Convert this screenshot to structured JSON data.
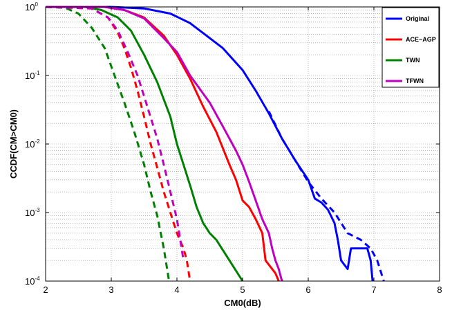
{
  "chart_data": {
    "type": "line",
    "xlabel": "CM0(dB)",
    "ylabel": "CCDF(CM>CM0)",
    "xlim": [
      2,
      8
    ],
    "ylim": [
      0.0001,
      1
    ],
    "yscale": "log",
    "grid": true,
    "legend_position": "top-right",
    "x_ticks": [
      "2",
      "3",
      "4",
      "5",
      "6",
      "7",
      "8"
    ],
    "y_ticks": [
      {
        "base": "10",
        "exp": "0",
        "value": 1
      },
      {
        "base": "10",
        "exp": "-1",
        "value": 0.1
      },
      {
        "base": "10",
        "exp": "-2",
        "value": 0.01
      },
      {
        "base": "10",
        "exp": "-3",
        "value": 0.001
      },
      {
        "base": "10",
        "exp": "-4",
        "value": 0.0001
      }
    ],
    "legend": [
      {
        "label": "Original",
        "color": "#0000ff"
      },
      {
        "label": "ACE−AGP",
        "color": "#ff0000"
      },
      {
        "label": "TWN",
        "color": "#008000"
      },
      {
        "label": "TFWN",
        "color": "#bf00bf"
      }
    ],
    "series": [
      {
        "name": "Original",
        "color": "#0000ff",
        "style": "solid",
        "points": [
          [
            2.0,
            1
          ],
          [
            3.0,
            1
          ],
          [
            3.5,
            0.95
          ],
          [
            3.9,
            0.8
          ],
          [
            4.2,
            0.58
          ],
          [
            4.5,
            0.35
          ],
          [
            4.7,
            0.25
          ],
          [
            5.0,
            0.12
          ],
          [
            5.2,
            0.06
          ],
          [
            5.4,
            0.028
          ],
          [
            5.6,
            0.012
          ],
          [
            5.8,
            0.0058
          ],
          [
            6.0,
            0.003
          ],
          [
            6.1,
            0.0016
          ],
          [
            6.2,
            0.0014
          ],
          [
            6.3,
            0.0011
          ],
          [
            6.4,
            0.0007
          ],
          [
            6.45,
            0.0004
          ],
          [
            6.5,
            0.0002
          ],
          [
            6.6,
            0.00015
          ],
          [
            6.65,
            0.0003
          ],
          [
            6.9,
            0.0003
          ],
          [
            6.95,
            0.0002
          ],
          [
            6.98,
            0.0001
          ]
        ]
      },
      {
        "name": "Original (dashed)",
        "color": "#0000ff",
        "style": "dashed",
        "points": [
          [
            5.4,
            0.03
          ],
          [
            5.6,
            0.012
          ],
          [
            5.8,
            0.0058
          ],
          [
            6.0,
            0.0028
          ],
          [
            6.2,
            0.0016
          ],
          [
            6.4,
            0.001
          ],
          [
            6.6,
            0.0005
          ],
          [
            6.8,
            0.0004
          ],
          [
            6.95,
            0.0003
          ],
          [
            7.05,
            0.0002
          ],
          [
            7.15,
            0.0001
          ]
        ]
      },
      {
        "name": "ACE−AGP",
        "color": "#ff0000",
        "style": "solid",
        "points": [
          [
            2.0,
            1
          ],
          [
            2.9,
            1
          ],
          [
            3.2,
            0.9
          ],
          [
            3.5,
            0.7
          ],
          [
            3.8,
            0.38
          ],
          [
            4.0,
            0.2
          ],
          [
            4.2,
            0.09
          ],
          [
            4.4,
            0.035
          ],
          [
            4.6,
            0.015
          ],
          [
            4.8,
            0.005
          ],
          [
            4.9,
            0.003
          ],
          [
            5.0,
            0.0015
          ],
          [
            5.1,
            0.0012
          ],
          [
            5.2,
            0.0008
          ],
          [
            5.3,
            0.0005
          ],
          [
            5.35,
            0.0002
          ],
          [
            5.45,
            0.00015
          ],
          [
            5.5,
            0.00013
          ],
          [
            5.55,
            0.0001
          ]
        ]
      },
      {
        "name": "ACE−AGP (dashed)",
        "color": "#ff0000",
        "style": "dashed",
        "points": [
          [
            2.0,
            1
          ],
          [
            2.7,
            0.95
          ],
          [
            2.95,
            0.7
          ],
          [
            3.1,
            0.42
          ],
          [
            3.2,
            0.25
          ],
          [
            3.3,
            0.13
          ],
          [
            3.4,
            0.06
          ],
          [
            3.5,
            0.025
          ],
          [
            3.6,
            0.01
          ],
          [
            3.7,
            0.0045
          ],
          [
            3.8,
            0.002
          ],
          [
            3.9,
            0.001
          ],
          [
            4.0,
            0.0005
          ],
          [
            4.1,
            0.0003
          ],
          [
            4.15,
            0.0002
          ],
          [
            4.2,
            0.0001
          ]
        ]
      },
      {
        "name": "TWN",
        "color": "#008000",
        "style": "solid",
        "points": [
          [
            2.0,
            1
          ],
          [
            2.6,
            1
          ],
          [
            2.85,
            0.9
          ],
          [
            3.1,
            0.7
          ],
          [
            3.3,
            0.45
          ],
          [
            3.5,
            0.2
          ],
          [
            3.7,
            0.08
          ],
          [
            3.9,
            0.025
          ],
          [
            4.0,
            0.01
          ],
          [
            4.1,
            0.005
          ],
          [
            4.2,
            0.0025
          ],
          [
            4.3,
            0.0012
          ],
          [
            4.4,
            0.0007
          ],
          [
            4.5,
            0.0005
          ],
          [
            4.6,
            0.0004
          ],
          [
            4.8,
            0.0002
          ],
          [
            5.0,
            0.0001
          ]
        ]
      },
      {
        "name": "TWN (dashed)",
        "color": "#008000",
        "style": "dashed",
        "points": [
          [
            2.0,
            1
          ],
          [
            2.3,
            0.97
          ],
          [
            2.5,
            0.8
          ],
          [
            2.7,
            0.5
          ],
          [
            2.9,
            0.25
          ],
          [
            3.05,
            0.1
          ],
          [
            3.2,
            0.04
          ],
          [
            3.35,
            0.015
          ],
          [
            3.5,
            0.005
          ],
          [
            3.6,
            0.002
          ],
          [
            3.7,
            0.0009
          ],
          [
            3.8,
            0.0003
          ],
          [
            3.88,
            0.0001
          ]
        ]
      },
      {
        "name": "TFWN",
        "color": "#bf00bf",
        "style": "solid",
        "points": [
          [
            2.0,
            1
          ],
          [
            2.9,
            1
          ],
          [
            3.2,
            0.9
          ],
          [
            3.5,
            0.68
          ],
          [
            3.8,
            0.35
          ],
          [
            4.0,
            0.22
          ],
          [
            4.2,
            0.1
          ],
          [
            4.5,
            0.04
          ],
          [
            4.7,
            0.018
          ],
          [
            4.9,
            0.008
          ],
          [
            5.0,
            0.005
          ],
          [
            5.1,
            0.0028
          ],
          [
            5.2,
            0.0015
          ],
          [
            5.3,
            0.0008
          ],
          [
            5.4,
            0.0005
          ],
          [
            5.45,
            0.0003
          ],
          [
            5.5,
            0.0002
          ],
          [
            5.55,
            0.00015
          ],
          [
            5.6,
            0.0001
          ]
        ]
      },
      {
        "name": "TFWN (dashed)",
        "color": "#bf00bf",
        "style": "dashed",
        "points": [
          [
            2.0,
            1
          ],
          [
            2.7,
            0.95
          ],
          [
            2.95,
            0.7
          ],
          [
            3.1,
            0.45
          ],
          [
            3.25,
            0.22
          ],
          [
            3.4,
            0.1
          ],
          [
            3.55,
            0.035
          ],
          [
            3.7,
            0.012
          ],
          [
            3.8,
            0.005
          ],
          [
            3.9,
            0.002
          ],
          [
            4.0,
            0.0008
          ],
          [
            4.05,
            0.0004
          ],
          [
            4.1,
            0.0002
          ]
        ]
      }
    ]
  }
}
